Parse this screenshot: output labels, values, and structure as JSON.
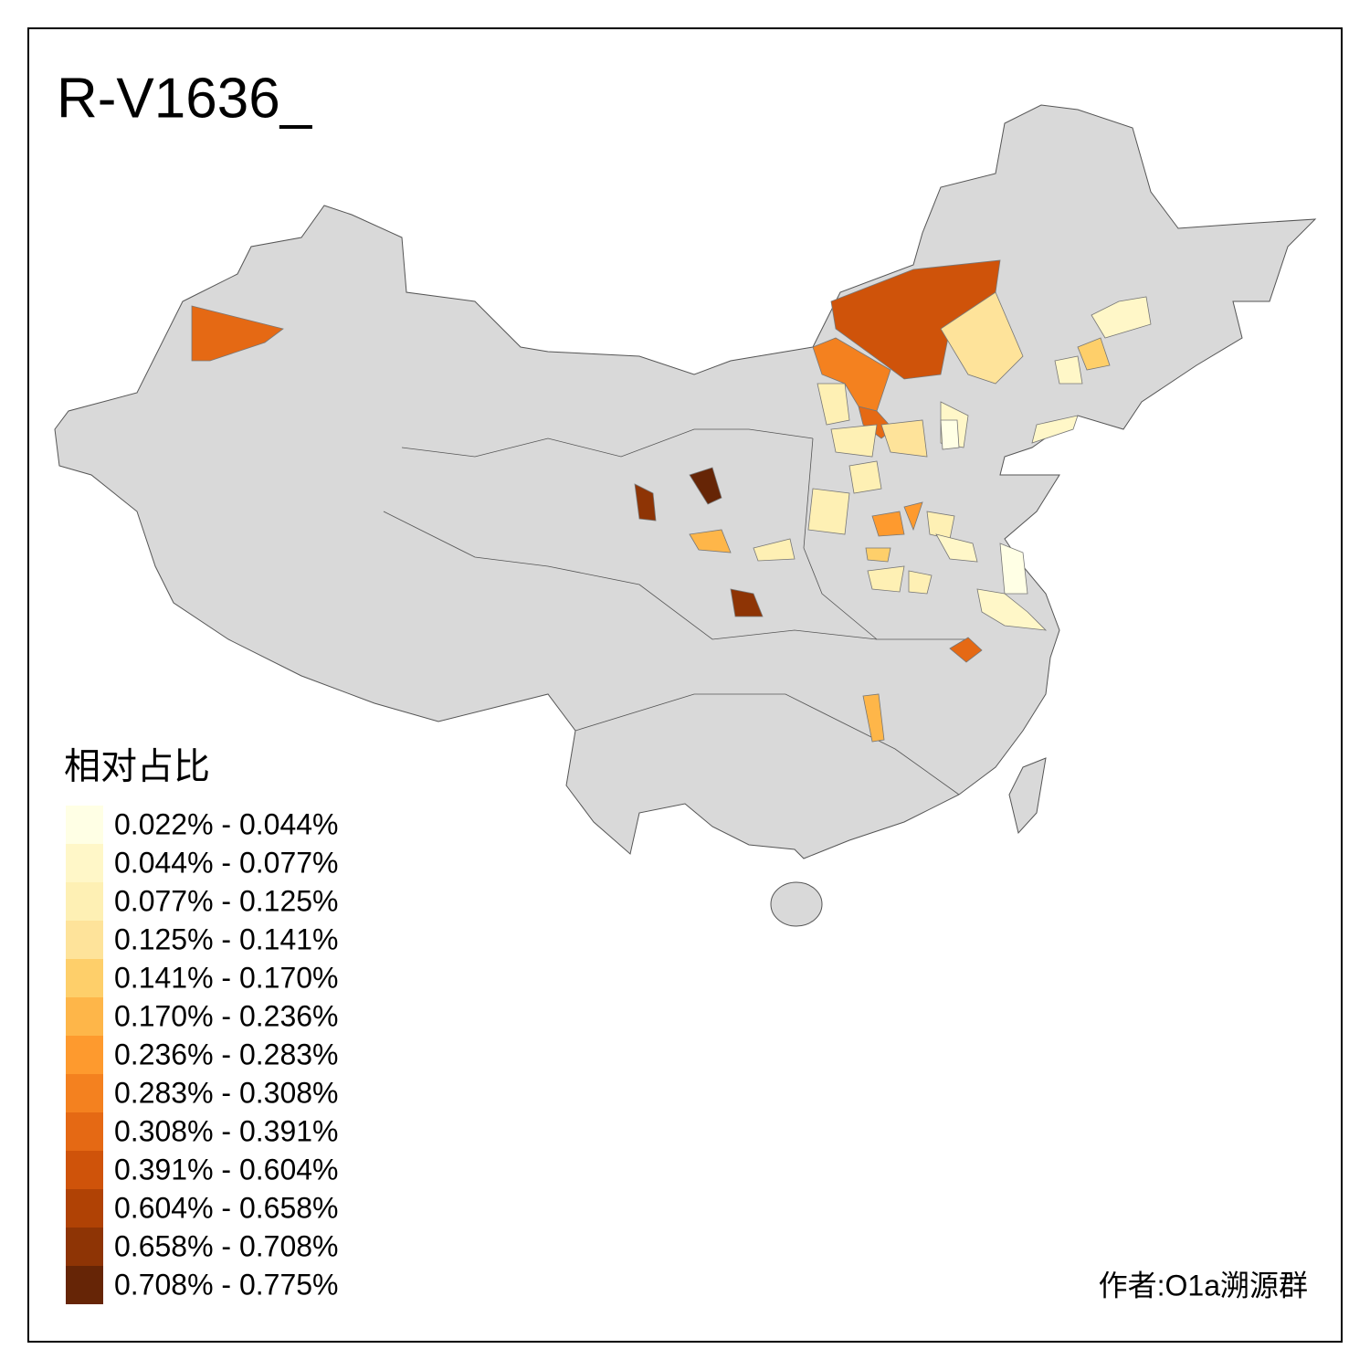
{
  "title": "R-V1636_",
  "legend": {
    "title": "相对占比",
    "items": [
      {
        "label": "0.022% - 0.044%",
        "color": "#ffffe5"
      },
      {
        "label": "0.044% - 0.077%",
        "color": "#fff7c8"
      },
      {
        "label": "0.077% - 0.125%",
        "color": "#fef0b4"
      },
      {
        "label": "0.125% - 0.141%",
        "color": "#fee39a"
      },
      {
        "label": "0.141% - 0.170%",
        "color": "#fecf6a"
      },
      {
        "label": "0.170% - 0.236%",
        "color": "#feb649"
      },
      {
        "label": "0.236% - 0.283%",
        "color": "#fe9a2e"
      },
      {
        "label": "0.283% - 0.308%",
        "color": "#f4811f"
      },
      {
        "label": "0.308% - 0.391%",
        "color": "#e56914"
      },
      {
        "label": "0.391% - 0.604%",
        "color": "#cf530a"
      },
      {
        "label": "0.604% - 0.658%",
        "color": "#b04205"
      },
      {
        "label": "0.658% - 0.708%",
        "color": "#8e3405"
      },
      {
        "label": "0.708% - 0.775%",
        "color": "#662506"
      }
    ]
  },
  "credit": "作者:O1a溯源群"
}
